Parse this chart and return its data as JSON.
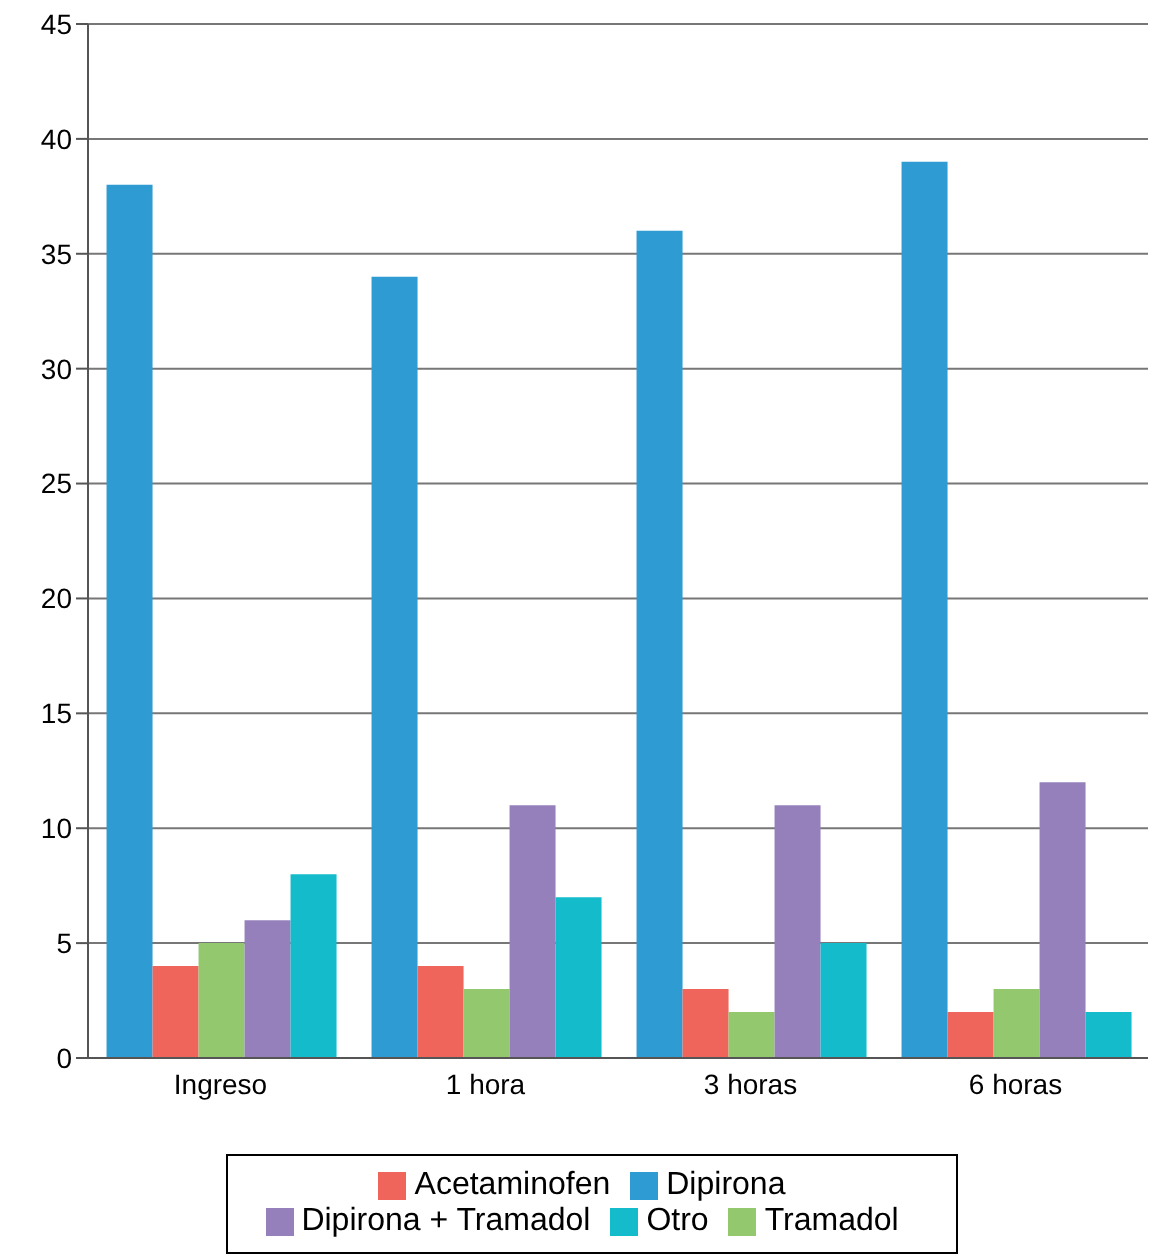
{
  "chart_data": {
    "type": "bar",
    "categories": [
      "Ingreso",
      "1 hora",
      "3 horas",
      "6 horas"
    ],
    "series": [
      {
        "name": "Dipirona",
        "color": "#2e9bd3",
        "values": [
          38,
          34,
          36,
          39
        ]
      },
      {
        "name": "Acetaminofen",
        "color": "#ef645b",
        "values": [
          4,
          4,
          3,
          2
        ]
      },
      {
        "name": "Tramadol",
        "color": "#93c86f",
        "values": [
          5,
          3,
          2,
          3
        ]
      },
      {
        "name": "Dipirona + Tramadol",
        "color": "#9580bc",
        "values": [
          6,
          11,
          11,
          12
        ]
      },
      {
        "name": "Otro",
        "color": "#14bccb",
        "values": [
          8,
          7,
          5,
          2
        ]
      }
    ],
    "ylim": [
      0,
      45
    ],
    "yticks": [
      0,
      5,
      10,
      15,
      20,
      25,
      30,
      35,
      40,
      45
    ],
    "grid": "y",
    "legend": "bottom"
  }
}
